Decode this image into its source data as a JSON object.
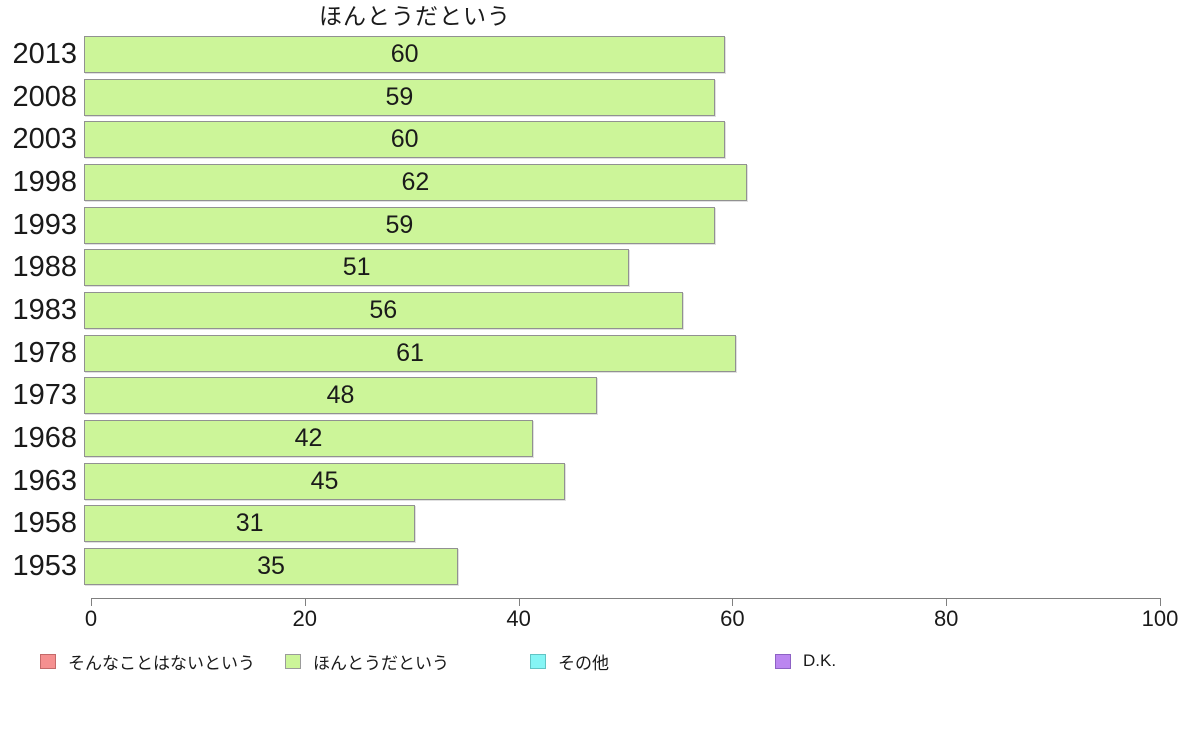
{
  "chart_data": {
    "type": "bar",
    "orientation": "horizontal",
    "title": "ほんとうだという",
    "categories": [
      "2013",
      "2008",
      "2003",
      "1998",
      "1993",
      "1988",
      "1983",
      "1978",
      "1973",
      "1968",
      "1963",
      "1958",
      "1953"
    ],
    "values": [
      60,
      59,
      60,
      62,
      59,
      51,
      56,
      61,
      48,
      42,
      45,
      31,
      35
    ],
    "series_name": "ほんとうだという",
    "xlabel": "",
    "ylabel": "",
    "xlim": [
      0,
      100
    ],
    "x_ticks": [
      0,
      20,
      40,
      60,
      80,
      100
    ],
    "grid": false,
    "legend_position": "bottom",
    "bar_fill": "#ccf599",
    "bar_border": "#919191",
    "axis_color": "#808080",
    "legend": [
      {
        "label": "そんなことはないという",
        "color": "#f59090",
        "border": "#c46a6a"
      },
      {
        "label": "ほんとうだという",
        "color": "#ccf599",
        "border": "#9b9b9b"
      },
      {
        "label": "その他",
        "color": "#85f5f5",
        "border": "#62c4c4"
      },
      {
        "label": "D.K.",
        "color": "#bb86f0",
        "border": "#8d62c4"
      }
    ]
  }
}
